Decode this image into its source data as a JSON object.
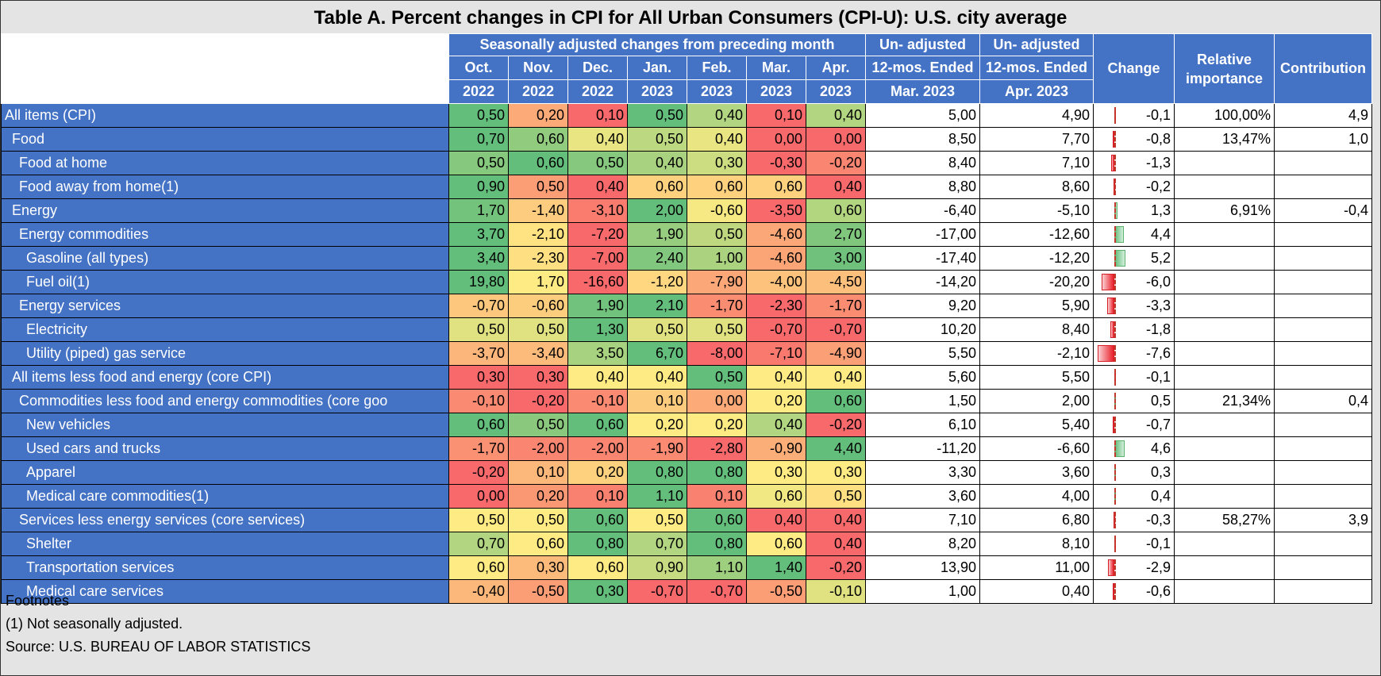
{
  "title": "Table A. Percent changes in CPI for All Urban Consumers (CPI-U): U.S. city average",
  "headers": {
    "group": "Seasonally adjusted changes from preceding month",
    "months": [
      [
        "Oct.",
        "2022"
      ],
      [
        "Nov.",
        "2022"
      ],
      [
        "Dec.",
        "2022"
      ],
      [
        "Jan.",
        "2023"
      ],
      [
        "Feb.",
        "2023"
      ],
      [
        "Mar.",
        "2023"
      ],
      [
        "Apr.",
        "2023"
      ]
    ],
    "unadj1": [
      "Un- adjusted",
      "12-mos. Ended",
      "Mar. 2023"
    ],
    "unadj2": [
      "Un- adjusted",
      "12-mos. Ended",
      "Apr. 2023"
    ],
    "change": "Change",
    "relative": [
      "Relative",
      "importance"
    ],
    "contribution": "Contribution"
  },
  "rows": [
    {
      "label": "All items (CPI)",
      "indent": 0,
      "m": [
        "0,50",
        "0,20",
        "0,10",
        "0,50",
        "0,40",
        "0,10",
        "0,40"
      ],
      "mv": [
        0.5,
        0.2,
        0.1,
        0.5,
        0.4,
        0.1,
        0.4
      ],
      "u1": "5,00",
      "u2": "4,90",
      "chg": "-0,1",
      "cv": -0.1,
      "rel": "100,00%",
      "contrib": "4,9"
    },
    {
      "label": "Food",
      "indent": 1,
      "m": [
        "0,70",
        "0,60",
        "0,40",
        "0,50",
        "0,40",
        "0,00",
        "0,00"
      ],
      "mv": [
        0.7,
        0.6,
        0.4,
        0.5,
        0.4,
        0.0,
        0.0
      ],
      "u1": "8,50",
      "u2": "7,70",
      "chg": "-0,8",
      "cv": -0.8,
      "rel": "13,47%",
      "contrib": "1,0"
    },
    {
      "label": "Food at home",
      "indent": 2,
      "m": [
        "0,50",
        "0,60",
        "0,50",
        "0,40",
        "0,30",
        "-0,30",
        "-0,20"
      ],
      "mv": [
        0.5,
        0.6,
        0.5,
        0.4,
        0.3,
        -0.3,
        -0.2
      ],
      "u1": "8,40",
      "u2": "7,10",
      "chg": "-1,3",
      "cv": -1.3,
      "rel": "",
      "contrib": ""
    },
    {
      "label": "Food away from home(1)",
      "indent": 2,
      "m": [
        "0,90",
        "0,50",
        "0,40",
        "0,60",
        "0,60",
        "0,60",
        "0,40"
      ],
      "mv": [
        0.9,
        0.5,
        0.4,
        0.6,
        0.6,
        0.6,
        0.4
      ],
      "u1": "8,80",
      "u2": "8,60",
      "chg": "-0,2",
      "cv": -0.2,
      "rel": "",
      "contrib": ""
    },
    {
      "label": "Energy",
      "indent": 1,
      "m": [
        "1,70",
        "-1,40",
        "-3,10",
        "2,00",
        "-0,60",
        "-3,50",
        "0,60"
      ],
      "mv": [
        1.7,
        -1.4,
        -3.1,
        2.0,
        -0.6,
        -3.5,
        0.6
      ],
      "u1": "-6,40",
      "u2": "-5,10",
      "chg": "1,3",
      "cv": 1.3,
      "rel": "6,91%",
      "contrib": "-0,4"
    },
    {
      "label": "Energy commodities",
      "indent": 2,
      "m": [
        "3,70",
        "-2,10",
        "-7,20",
        "1,90",
        "0,50",
        "-4,60",
        "2,70"
      ],
      "mv": [
        3.7,
        -2.1,
        -7.2,
        1.9,
        0.5,
        -4.6,
        2.7
      ],
      "u1": "-17,00",
      "u2": "-12,60",
      "chg": "4,4",
      "cv": 4.4,
      "rel": "",
      "contrib": ""
    },
    {
      "label": "Gasoline (all types)",
      "indent": 3,
      "m": [
        "3,40",
        "-2,30",
        "-7,00",
        "2,40",
        "1,00",
        "-4,60",
        "3,00"
      ],
      "mv": [
        3.4,
        -2.3,
        -7.0,
        2.4,
        1.0,
        -4.6,
        3.0
      ],
      "u1": "-17,40",
      "u2": "-12,20",
      "chg": "5,2",
      "cv": 5.2,
      "rel": "",
      "contrib": ""
    },
    {
      "label": "Fuel oil(1)",
      "indent": 3,
      "m": [
        "19,80",
        "1,70",
        "-16,60",
        "-1,20",
        "-7,90",
        "-4,00",
        "-4,50"
      ],
      "mv": [
        19.8,
        1.7,
        -16.6,
        -1.2,
        -7.9,
        -4.0,
        -4.5
      ],
      "u1": "-14,20",
      "u2": "-20,20",
      "chg": "-6,0",
      "cv": -6.0,
      "rel": "",
      "contrib": ""
    },
    {
      "label": "Energy services",
      "indent": 2,
      "m": [
        "-0,70",
        "-0,60",
        "1,90",
        "2,10",
        "-1,70",
        "-2,30",
        "-1,70"
      ],
      "mv": [
        -0.7,
        -0.6,
        1.9,
        2.1,
        -1.7,
        -2.3,
        -1.7
      ],
      "u1": "9,20",
      "u2": "5,90",
      "chg": "-3,3",
      "cv": -3.3,
      "rel": "",
      "contrib": ""
    },
    {
      "label": "Electricity",
      "indent": 3,
      "m": [
        "0,50",
        "0,50",
        "1,30",
        "0,50",
        "0,50",
        "-0,70",
        "-0,70"
      ],
      "mv": [
        0.5,
        0.5,
        1.3,
        0.5,
        0.5,
        -0.7,
        -0.7
      ],
      "u1": "10,20",
      "u2": "8,40",
      "chg": "-1,8",
      "cv": -1.8,
      "rel": "",
      "contrib": ""
    },
    {
      "label": "Utility (piped) gas service",
      "indent": 3,
      "m": [
        "-3,70",
        "-3,40",
        "3,50",
        "6,70",
        "-8,00",
        "-7,10",
        "-4,90"
      ],
      "mv": [
        -3.7,
        -3.4,
        3.5,
        6.7,
        -8.0,
        -7.1,
        -4.9
      ],
      "u1": "5,50",
      "u2": "-2,10",
      "chg": "-7,6",
      "cv": -7.6,
      "rel": "",
      "contrib": ""
    },
    {
      "label": "All items less food and energy (core CPI)",
      "indent": 1,
      "m": [
        "0,30",
        "0,30",
        "0,40",
        "0,40",
        "0,50",
        "0,40",
        "0,40"
      ],
      "mv": [
        0.3,
        0.3,
        0.4,
        0.4,
        0.5,
        0.4,
        0.4
      ],
      "u1": "5,60",
      "u2": "5,50",
      "chg": "-0,1",
      "cv": -0.1,
      "rel": "",
      "contrib": ""
    },
    {
      "label": "Commodities less food and energy commodities (core goo",
      "indent": 2,
      "m": [
        "-0,10",
        "-0,20",
        "-0,10",
        "0,10",
        "0,00",
        "0,20",
        "0,60"
      ],
      "mv": [
        -0.1,
        -0.2,
        -0.1,
        0.1,
        0.0,
        0.2,
        0.6
      ],
      "u1": "1,50",
      "u2": "2,00",
      "chg": "0,5",
      "cv": 0.5,
      "rel": "21,34%",
      "contrib": "0,4"
    },
    {
      "label": "New vehicles",
      "indent": 3,
      "m": [
        "0,60",
        "0,50",
        "0,60",
        "0,20",
        "0,20",
        "0,40",
        "-0,20"
      ],
      "mv": [
        0.6,
        0.5,
        0.6,
        0.2,
        0.2,
        0.4,
        -0.2
      ],
      "u1": "6,10",
      "u2": "5,40",
      "chg": "-0,7",
      "cv": -0.7,
      "rel": "",
      "contrib": ""
    },
    {
      "label": "Used cars and trucks",
      "indent": 3,
      "m": [
        "-1,70",
        "-2,00",
        "-2,00",
        "-1,90",
        "-2,80",
        "-0,90",
        "4,40"
      ],
      "mv": [
        -1.7,
        -2.0,
        -2.0,
        -1.9,
        -2.8,
        -0.9,
        4.4
      ],
      "u1": "-11,20",
      "u2": "-6,60",
      "chg": "4,6",
      "cv": 4.6,
      "rel": "",
      "contrib": ""
    },
    {
      "label": "Apparel",
      "indent": 3,
      "m": [
        "-0,20",
        "0,10",
        "0,20",
        "0,80",
        "0,80",
        "0,30",
        "0,30"
      ],
      "mv": [
        -0.2,
        0.1,
        0.2,
        0.8,
        0.8,
        0.3,
        0.3
      ],
      "u1": "3,30",
      "u2": "3,60",
      "chg": "0,3",
      "cv": 0.3,
      "rel": "",
      "contrib": ""
    },
    {
      "label": "Medical care commodities(1)",
      "indent": 3,
      "m": [
        "0,00",
        "0,20",
        "0,10",
        "1,10",
        "0,10",
        "0,60",
        "0,50"
      ],
      "mv": [
        0.0,
        0.2,
        0.1,
        1.1,
        0.1,
        0.6,
        0.5
      ],
      "u1": "3,60",
      "u2": "4,00",
      "chg": "0,4",
      "cv": 0.4,
      "rel": "",
      "contrib": ""
    },
    {
      "label": "Services less energy services (core services)",
      "indent": 2,
      "m": [
        "0,50",
        "0,50",
        "0,60",
        "0,50",
        "0,60",
        "0,40",
        "0,40"
      ],
      "mv": [
        0.5,
        0.5,
        0.6,
        0.5,
        0.6,
        0.4,
        0.4
      ],
      "u1": "7,10",
      "u2": "6,80",
      "chg": "-0,3",
      "cv": -0.3,
      "rel": "58,27%",
      "contrib": "3,9"
    },
    {
      "label": "Shelter",
      "indent": 3,
      "m": [
        "0,70",
        "0,60",
        "0,80",
        "0,70",
        "0,80",
        "0,60",
        "0,40"
      ],
      "mv": [
        0.7,
        0.6,
        0.8,
        0.7,
        0.8,
        0.6,
        0.4
      ],
      "u1": "8,20",
      "u2": "8,10",
      "chg": "-0,1",
      "cv": -0.1,
      "rel": "",
      "contrib": ""
    },
    {
      "label": "Transportation services",
      "indent": 3,
      "m": [
        "0,60",
        "0,30",
        "0,60",
        "0,90",
        "1,10",
        "1,40",
        "-0,20"
      ],
      "mv": [
        0.6,
        0.3,
        0.6,
        0.9,
        1.1,
        1.4,
        -0.2
      ],
      "u1": "13,90",
      "u2": "11,00",
      "chg": "-2,9",
      "cv": -2.9,
      "rel": "",
      "contrib": ""
    },
    {
      "label": "Medical care services",
      "indent": 3,
      "m": [
        "-0,40",
        "-0,50",
        "0,30",
        "-0,70",
        "-0,70",
        "-0,50",
        "-0,10"
      ],
      "mv": [
        -0.4,
        -0.5,
        0.3,
        -0.7,
        -0.7,
        -0.5,
        -0.1
      ],
      "u1": "1,00",
      "u2": "0,40",
      "chg": "-0,6",
      "cv": -0.6,
      "rel": "",
      "contrib": ""
    }
  ],
  "footnotes": {
    "heading": "Footnotes",
    "note1": "(1) Not seasonally adjusted.",
    "source": "Source: U.S. BUREAU OF LABOR STATISTICS"
  },
  "colors": {
    "label_bg": "#4472c4",
    "scale_red": "#f8696b",
    "scale_yellow": "#ffeb84",
    "scale_green": "#63be7b",
    "bar_red": "#e8202a",
    "bar_green": "#63be7b"
  }
}
